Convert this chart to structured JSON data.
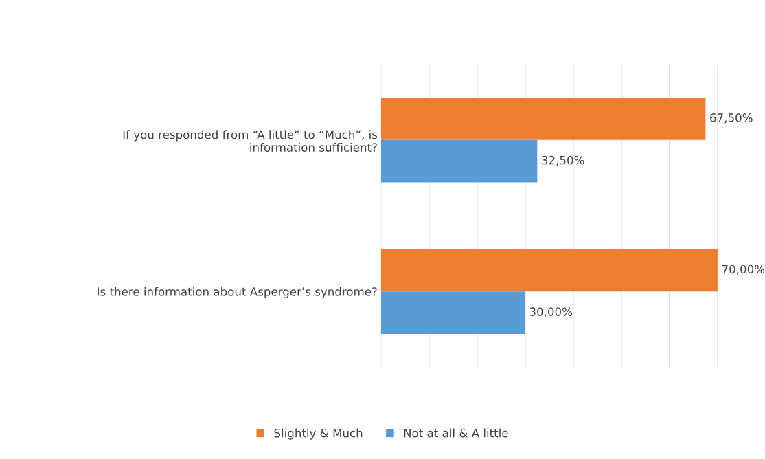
{
  "chart_data": {
    "type": "bar",
    "orientation": "horizontal",
    "categories": [
      "If you responded from “A little” to “Much”, is\ninformation sufficient?",
      "Is there information about Asperger’s syndrome?"
    ],
    "series": [
      {
        "name": "Slightly & Much",
        "color": "#ed7d31",
        "values": [
          67.5,
          70.0
        ],
        "value_labels": [
          "67,50%",
          "70,00%"
        ]
      },
      {
        "name": "Not at all & A little",
        "color": "#5b9bd5",
        "values": [
          32.5,
          30.0
        ],
        "value_labels": [
          "32,50%",
          "30,00%"
        ]
      }
    ],
    "xlim": [
      0,
      70
    ],
    "xticks": [
      {
        "value": 0,
        "label": null
      },
      {
        "value": 10,
        "label": null
      },
      {
        "value": 20,
        "label": null
      },
      {
        "value": 30,
        "label": null
      },
      {
        "value": 40,
        "label": null
      },
      {
        "value": 50,
        "label": null
      },
      {
        "value": 60,
        "label": null
      },
      {
        "value": 70,
        "label": null
      }
    ],
    "grid": "x",
    "legend": "bottom"
  }
}
